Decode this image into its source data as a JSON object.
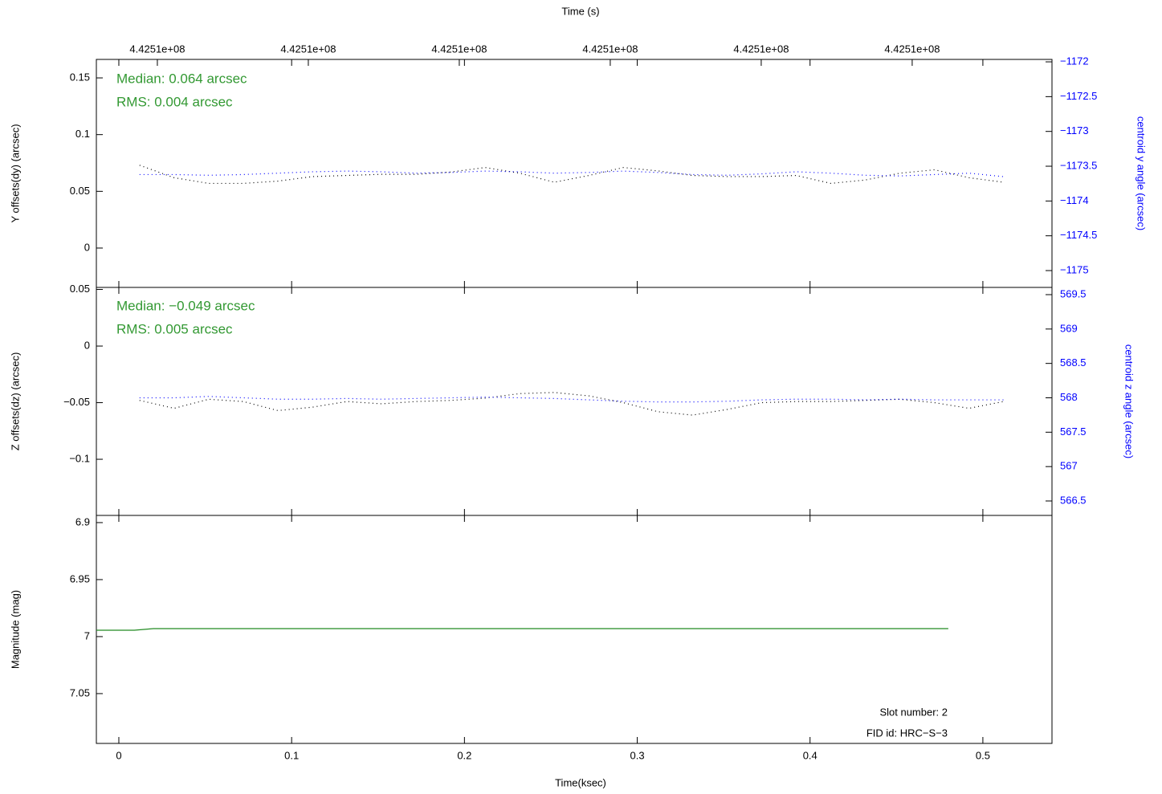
{
  "chart_data": [
    {
      "type": "line",
      "linestyle": "dotted",
      "x2label": "Time (s)",
      "ylabel": "Y offsets(dy) (arcsec)",
      "y2label": "centroid y angle (arcsec)",
      "annotations": [
        "Median: 0.064 arcsec",
        "RMS: 0.004 arcsec"
      ],
      "xlim": [
        -0.013,
        0.54
      ],
      "x2lim": [
        442510059.6,
        442510692.6
      ],
      "x2ticks": [
        {
          "value": 442510100,
          "label": "4.4251e+08"
        },
        {
          "value": 442510200,
          "label": "4.4251e+08"
        },
        {
          "value": 442510300,
          "label": "4.4251e+08"
        },
        {
          "value": 442510400,
          "label": "4.4251e+08"
        },
        {
          "value": 442510500,
          "label": "4.4251e+08"
        },
        {
          "value": 442510600,
          "label": "4.4251e+08"
        }
      ],
      "ylim": [
        -0.0347,
        0.1663
      ],
      "yticks": [
        0,
        0.05,
        0.1,
        0.15
      ],
      "y2lim": [
        -1175.242,
        -1171.965
      ],
      "y2ticks": [
        {
          "value": -1172,
          "label": "−1172"
        },
        {
          "value": -1172.5,
          "label": "−1172.5"
        },
        {
          "value": -1173,
          "label": "−1173"
        },
        {
          "value": -1173.5,
          "label": "−1173.5"
        },
        {
          "value": -1174,
          "label": "−1174"
        },
        {
          "value": -1174.5,
          "label": "−1174.5"
        },
        {
          "value": -1175,
          "label": "−1175"
        }
      ],
      "x": [
        0.012,
        0.032,
        0.052,
        0.072,
        0.092,
        0.112,
        0.132,
        0.152,
        0.172,
        0.192,
        0.212,
        0.232,
        0.252,
        0.272,
        0.292,
        0.312,
        0.332,
        0.352,
        0.372,
        0.392,
        0.412,
        0.432,
        0.452,
        0.472,
        0.492,
        0.512
      ],
      "series": [
        {
          "color": "#000000",
          "values": [
            0.073,
            0.062,
            0.057,
            0.057,
            0.059,
            0.063,
            0.064,
            0.065,
            0.065,
            0.067,
            0.071,
            0.066,
            0.058,
            0.064,
            0.071,
            0.068,
            0.064,
            0.063,
            0.063,
            0.064,
            0.057,
            0.06,
            0.066,
            0.069,
            0.062,
            0.058
          ]
        },
        {
          "color": "#0000ff",
          "axis": "y2",
          "values": [
            -1173.62,
            -1173.62,
            -1173.63,
            -1173.62,
            -1173.6,
            -1173.58,
            -1173.57,
            -1173.58,
            -1173.6,
            -1173.59,
            -1173.57,
            -1173.58,
            -1173.6,
            -1173.59,
            -1173.57,
            -1173.59,
            -1173.62,
            -1173.63,
            -1173.61,
            -1173.58,
            -1173.6,
            -1173.63,
            -1173.64,
            -1173.62,
            -1173.6,
            -1173.65
          ]
        }
      ]
    },
    {
      "type": "line",
      "linestyle": "dotted",
      "ylabel": "Z offsets(dz) (arcsec)",
      "y2label": "centroid z angle (arcsec)",
      "annotations": [
        "Median: −0.049 arcsec",
        "RMS: 0.005 arcsec"
      ],
      "xlim": [
        -0.013,
        0.54
      ],
      "ylim": [
        -0.1496,
        0.0518
      ],
      "yticks": [
        {
          "value": -0.1,
          "label": "−0.1"
        },
        {
          "value": -0.05,
          "label": "−0.05"
        },
        0,
        0.05
      ],
      "y2lim": [
        566.29,
        569.605
      ],
      "y2ticks": [
        566.5,
        567,
        567.5,
        568,
        568.5,
        569,
        569.5
      ],
      "x": [
        0.012,
        0.032,
        0.052,
        0.072,
        0.092,
        0.112,
        0.132,
        0.152,
        0.172,
        0.192,
        0.212,
        0.232,
        0.252,
        0.272,
        0.292,
        0.312,
        0.332,
        0.352,
        0.372,
        0.392,
        0.412,
        0.432,
        0.452,
        0.472,
        0.492,
        0.512
      ],
      "series": [
        {
          "color": "#000000",
          "values": [
            -0.048,
            -0.055,
            -0.047,
            -0.049,
            -0.057,
            -0.054,
            -0.049,
            -0.051,
            -0.049,
            -0.048,
            -0.046,
            -0.042,
            -0.041,
            -0.044,
            -0.05,
            -0.058,
            -0.061,
            -0.056,
            -0.05,
            -0.049,
            -0.049,
            -0.048,
            -0.047,
            -0.05,
            -0.055,
            -0.049
          ]
        },
        {
          "color": "#0000ff",
          "axis": "y2",
          "values": [
            568.0,
            568.0,
            568.02,
            568.0,
            567.98,
            567.98,
            567.99,
            567.98,
            567.99,
            568.0,
            568.01,
            568.0,
            567.99,
            567.97,
            567.95,
            567.94,
            567.94,
            567.95,
            567.97,
            567.98,
            567.98,
            567.97,
            567.98,
            567.97,
            567.97,
            567.97
          ]
        }
      ]
    },
    {
      "type": "line",
      "linestyle": "solid",
      "ylabel": "Magnitude (mag)",
      "xlabel": "Time(ksec)",
      "annotations": [
        "Slot number: 2",
        "FID id: HRC−S−3"
      ],
      "xlim": [
        -0.013,
        0.54
      ],
      "xticks": [
        0,
        0.1,
        0.2,
        0.3,
        0.4,
        0.5
      ],
      "ylim": [
        7.0937,
        6.8937
      ],
      "yticks": [
        6.9,
        6.95,
        7,
        7.05
      ],
      "x": [
        -0.013,
        0.009,
        0.02,
        0.48
      ],
      "series": [
        {
          "color": "#228b22",
          "values": [
            6.9944,
            6.9944,
            6.993,
            6.993
          ]
        }
      ]
    }
  ]
}
